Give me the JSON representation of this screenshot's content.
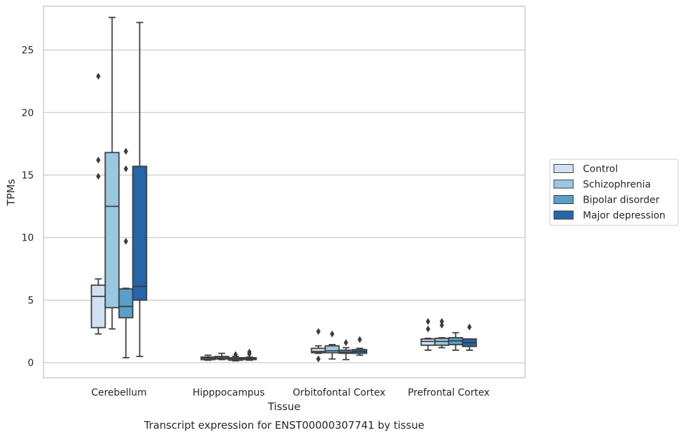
{
  "chart_data": {
    "type": "boxplot",
    "title": "Transcript expression for ENST00000307741 by tissue",
    "xlabel": "Tissue",
    "ylabel": "TPMs",
    "ylim": [
      -1.2,
      28.5
    ],
    "yticks": [
      0,
      5,
      10,
      15,
      20,
      25
    ],
    "grid": "horizontal",
    "legend_position": "right",
    "categories": [
      "Cerebellum",
      "Hipppocampus",
      "Orbitofontal Cortex",
      "Prefrontal Cortex"
    ],
    "series": [
      {
        "name": "Control",
        "color": "#d0e1f2",
        "boxes": [
          {
            "whislo": 2.3,
            "q1": 2.8,
            "med": 5.3,
            "q3": 6.2,
            "whishi": 6.7,
            "fliers": [
              22.9,
              16.2,
              14.9
            ]
          },
          {
            "whislo": 0.2,
            "q1": 0.25,
            "med": 0.35,
            "q3": 0.45,
            "whishi": 0.6,
            "fliers": []
          },
          {
            "whislo": 0.75,
            "q1": 0.8,
            "med": 0.9,
            "q3": 1.15,
            "whishi": 1.35,
            "fliers": [
              2.5,
              0.3
            ]
          },
          {
            "whislo": 1.0,
            "q1": 1.4,
            "med": 1.7,
            "q3": 1.9,
            "whishi": 1.95,
            "fliers": [
              3.3,
              2.7
            ]
          }
        ]
      },
      {
        "name": "Schizophrenia",
        "color": "#9ac8e0",
        "boxes": [
          {
            "whislo": 2.7,
            "q1": 4.4,
            "med": 12.5,
            "q3": 16.8,
            "whishi": 27.6,
            "fliers": []
          },
          {
            "whislo": 0.25,
            "q1": 0.3,
            "med": 0.4,
            "q3": 0.5,
            "whishi": 0.75,
            "fliers": []
          },
          {
            "whislo": 0.3,
            "q1": 0.8,
            "med": 0.95,
            "q3": 1.35,
            "whishi": 1.45,
            "fliers": [
              2.3
            ]
          },
          {
            "whislo": 1.2,
            "q1": 1.4,
            "med": 1.7,
            "q3": 1.95,
            "whishi": 2.0,
            "fliers": [
              3.3,
              3.0
            ]
          }
        ]
      },
      {
        "name": "Bipolar disorder",
        "color": "#5a9fcb",
        "boxes": [
          {
            "whislo": 0.4,
            "q1": 3.6,
            "med": 4.5,
            "q3": 5.9,
            "whishi": 5.95,
            "fliers": [
              16.9,
              15.5,
              9.7
            ]
          },
          {
            "whislo": 0.15,
            "q1": 0.2,
            "med": 0.3,
            "q3": 0.4,
            "whishi": 0.5,
            "fliers": [
              0.65
            ]
          },
          {
            "whislo": 0.25,
            "q1": 0.75,
            "med": 0.85,
            "q3": 1.0,
            "whishi": 1.2,
            "fliers": [
              1.6
            ]
          },
          {
            "whislo": 1.0,
            "q1": 1.45,
            "med": 1.75,
            "q3": 2.0,
            "whishi": 2.4,
            "fliers": []
          }
        ]
      },
      {
        "name": "Major depression",
        "color": "#2565a8",
        "boxes": [
          {
            "whislo": 0.5,
            "q1": 5.0,
            "med": 6.1,
            "q3": 15.7,
            "whishi": 27.2,
            "fliers": []
          },
          {
            "whislo": 0.2,
            "q1": 0.25,
            "med": 0.32,
            "q3": 0.4,
            "whishi": 0.45,
            "fliers": [
              0.85,
              0.7
            ]
          },
          {
            "whislo": 0.6,
            "q1": 0.75,
            "med": 0.9,
            "q3": 1.05,
            "whishi": 1.15,
            "fliers": [
              1.85
            ]
          },
          {
            "whislo": 1.0,
            "q1": 1.3,
            "med": 1.6,
            "q3": 1.9,
            "whishi": 1.9,
            "fliers": [
              2.85
            ]
          }
        ]
      }
    ]
  }
}
